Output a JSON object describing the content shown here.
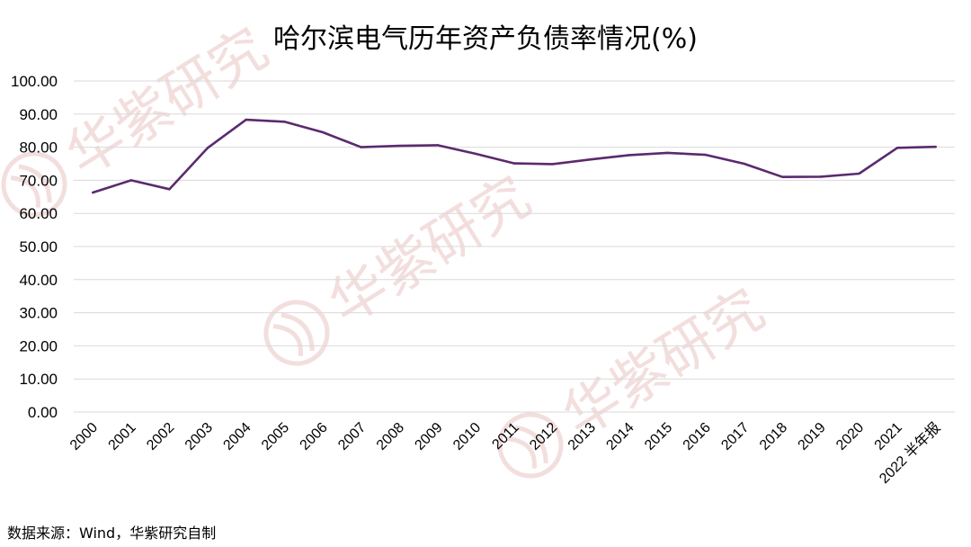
{
  "chart_data": {
    "type": "line",
    "title": "哈尔滨电气历年资产负债率情况(%)",
    "categories": [
      "2000",
      "2001",
      "2002",
      "2003",
      "2004",
      "2005",
      "2006",
      "2007",
      "2008",
      "2009",
      "2010",
      "2011",
      "2012",
      "2013",
      "2014",
      "2015",
      "2016",
      "2017",
      "2018",
      "2019",
      "2020",
      "2021",
      "2022 半年报"
    ],
    "series": [
      {
        "values": [
          66.3,
          70.0,
          67.3,
          79.8,
          88.3,
          87.7,
          84.5,
          80.0,
          80.4,
          80.6,
          78.0,
          75.1,
          74.9,
          76.3,
          77.6,
          78.3,
          77.7,
          75.0,
          71.0,
          71.1,
          72.0,
          79.8,
          80.1
        ],
        "color": "#5b2a6e"
      }
    ],
    "ylim": [
      0,
      100
    ],
    "yticks": [
      "0.00",
      "10.00",
      "20.00",
      "30.00",
      "40.00",
      "50.00",
      "60.00",
      "70.00",
      "80.00",
      "90.00",
      "100.00"
    ],
    "grid": true,
    "legend": "none",
    "xlabel": "",
    "ylabel": ""
  },
  "source": "数据来源：Wind，华紫研究自制",
  "watermark": "华紫研究",
  "colors": {
    "grid": "#d9d9d9",
    "line": "#5b2a6e",
    "watermark": "#f3dede"
  }
}
